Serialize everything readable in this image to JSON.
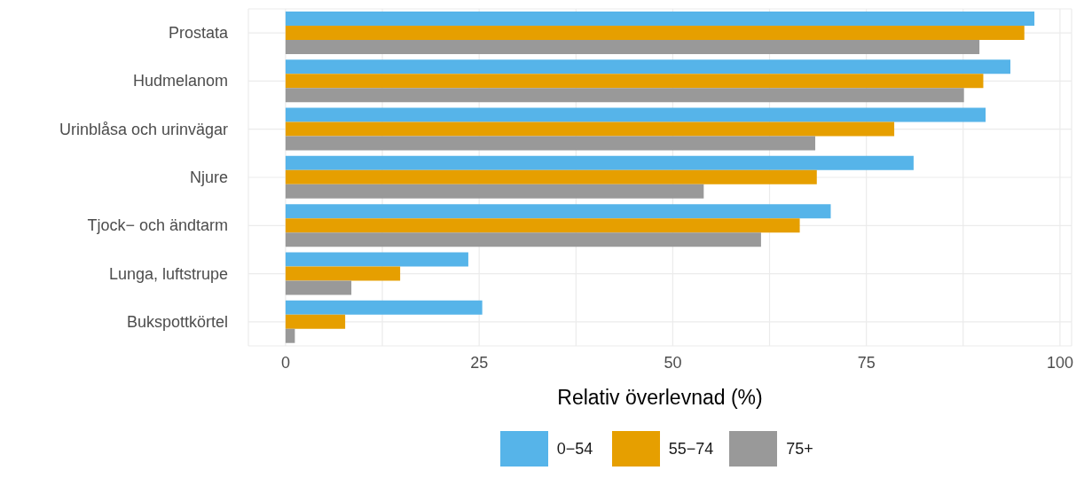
{
  "chart_data": {
    "type": "bar",
    "orientation": "horizontal",
    "xlabel": "Relativ överlevnad  (%)",
    "categories": [
      "Prostata",
      "Hudmelanom",
      "Urinblåsa och urinvägar",
      "Njure",
      "Tjock− och ändtarm",
      "Lunga, luftstrupe",
      "Bukspottkörtel"
    ],
    "series": [
      {
        "name": "0−54",
        "color": "#56b4e9",
        "values": [
          96.7,
          93.6,
          90.4,
          81.1,
          70.4,
          23.6,
          25.4
        ]
      },
      {
        "name": "55−74",
        "color": "#e69f00",
        "values": [
          95.4,
          90.1,
          78.6,
          68.6,
          66.4,
          14.8,
          7.7
        ]
      },
      {
        "name": "75+",
        "color": "#999999",
        "values": [
          89.6,
          87.6,
          68.4,
          54.0,
          61.4,
          8.5,
          1.2
        ]
      }
    ],
    "xlim": [
      -4.8,
      101.5
    ],
    "xticks": [
      0,
      {
        "value": 12.5,
        "label": null
      },
      25,
      {
        "value": 37.5,
        "label": null
      },
      50,
      {
        "value": 62.5,
        "label": null
      },
      75,
      {
        "value": 87.5,
        "label": null
      },
      100
    ],
    "grid": true,
    "legend": "bottom"
  }
}
